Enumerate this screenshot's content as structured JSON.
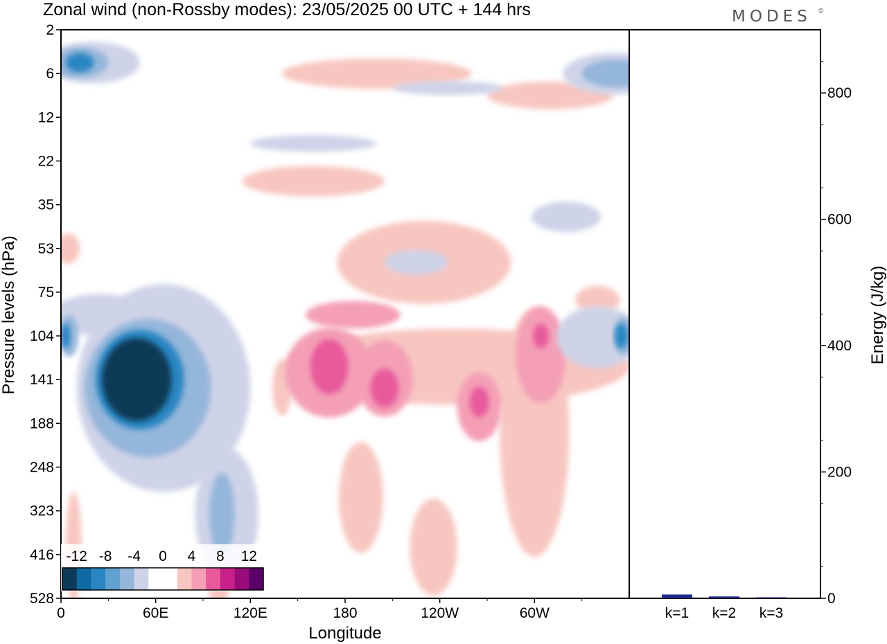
{
  "header": {
    "title": "Zonal wind (non-Rossby modes):  23/05/2025  00 UTC  + 144 hrs",
    "logo": "MODES",
    "logo_mark": "©"
  },
  "chart_data": [
    {
      "type": "heatmap",
      "title": "Zonal wind (non-Rossby modes):  23/05/2025  00 UTC  + 144 hrs",
      "xlabel": "Longitude",
      "ylabel": "Pressure levels (hPa)",
      "x_ticks": [
        "0",
        "60E",
        "120E",
        "180",
        "120W",
        "60W"
      ],
      "x_tick_degrees_east": [
        0,
        60,
        120,
        180,
        240,
        300
      ],
      "xlim_degrees_east": [
        0,
        360
      ],
      "y_ticks": [
        "2",
        "6",
        "12",
        "22",
        "35",
        "53",
        "75",
        "104",
        "141",
        "188",
        "248",
        "323",
        "416",
        "528"
      ],
      "y_axis_inverted": true,
      "grid": false,
      "colorbar": {
        "position": "bottom-left",
        "labels": [
          "-12",
          "-8",
          "-4",
          "0",
          "4",
          "8",
          "12"
        ],
        "levels": [
          -14,
          -12,
          -10,
          -8,
          -6,
          -4,
          -2,
          0,
          2,
          4,
          6,
          8,
          10,
          12,
          14
        ],
        "colors": [
          "#0d3b57",
          "#1169a3",
          "#2a86c3",
          "#5fa1d0",
          "#94b6da",
          "#cfd3e8",
          "#ffffff",
          "#ffffff",
          "#f8c6c0",
          "#f49fb6",
          "#e85a9c",
          "#c9218a",
          "#9a0c7a",
          "#5a0068"
        ]
      },
      "features": [
        {
          "name": "negative core",
          "lon": 48,
          "level": 141,
          "value": -14
        },
        {
          "name": "negative tongue",
          "lon": 100,
          "level": 330,
          "value": -8
        },
        {
          "name": "negative band",
          "lon": 3,
          "level": 104,
          "value": -10
        },
        {
          "name": "negative band",
          "lon": 360,
          "level": 104,
          "value": -10
        },
        {
          "name": "negative upper",
          "lon": 12,
          "level": 5,
          "value": -10
        },
        {
          "name": "negative upper",
          "lon": 352,
          "level": 6,
          "value": -8
        },
        {
          "name": "positive core",
          "lon": 168,
          "level": 141,
          "value": 8
        },
        {
          "name": "positive core",
          "lon": 206,
          "level": 150,
          "value": 8
        },
        {
          "name": "positive core",
          "lon": 306,
          "level": 104,
          "value": 8
        },
        {
          "name": "positive core",
          "lon": 264,
          "level": 160,
          "value": 6
        },
        {
          "name": "positive band",
          "lon": 240,
          "level": 90,
          "value": 4
        },
        {
          "name": "positive upper",
          "lon": 200,
          "level": 5,
          "value": 4
        }
      ],
      "units": ""
    },
    {
      "type": "bar",
      "categories": [
        "k=1",
        "k=2",
        "k=3"
      ],
      "values": [
        6,
        3,
        1
      ],
      "ylabel": "Energy (J/kg)",
      "y_ticks": [
        "0",
        "200",
        "400",
        "600",
        "800"
      ],
      "ylim": [
        0,
        900
      ],
      "bar_color": "#1f2a8a"
    }
  ]
}
